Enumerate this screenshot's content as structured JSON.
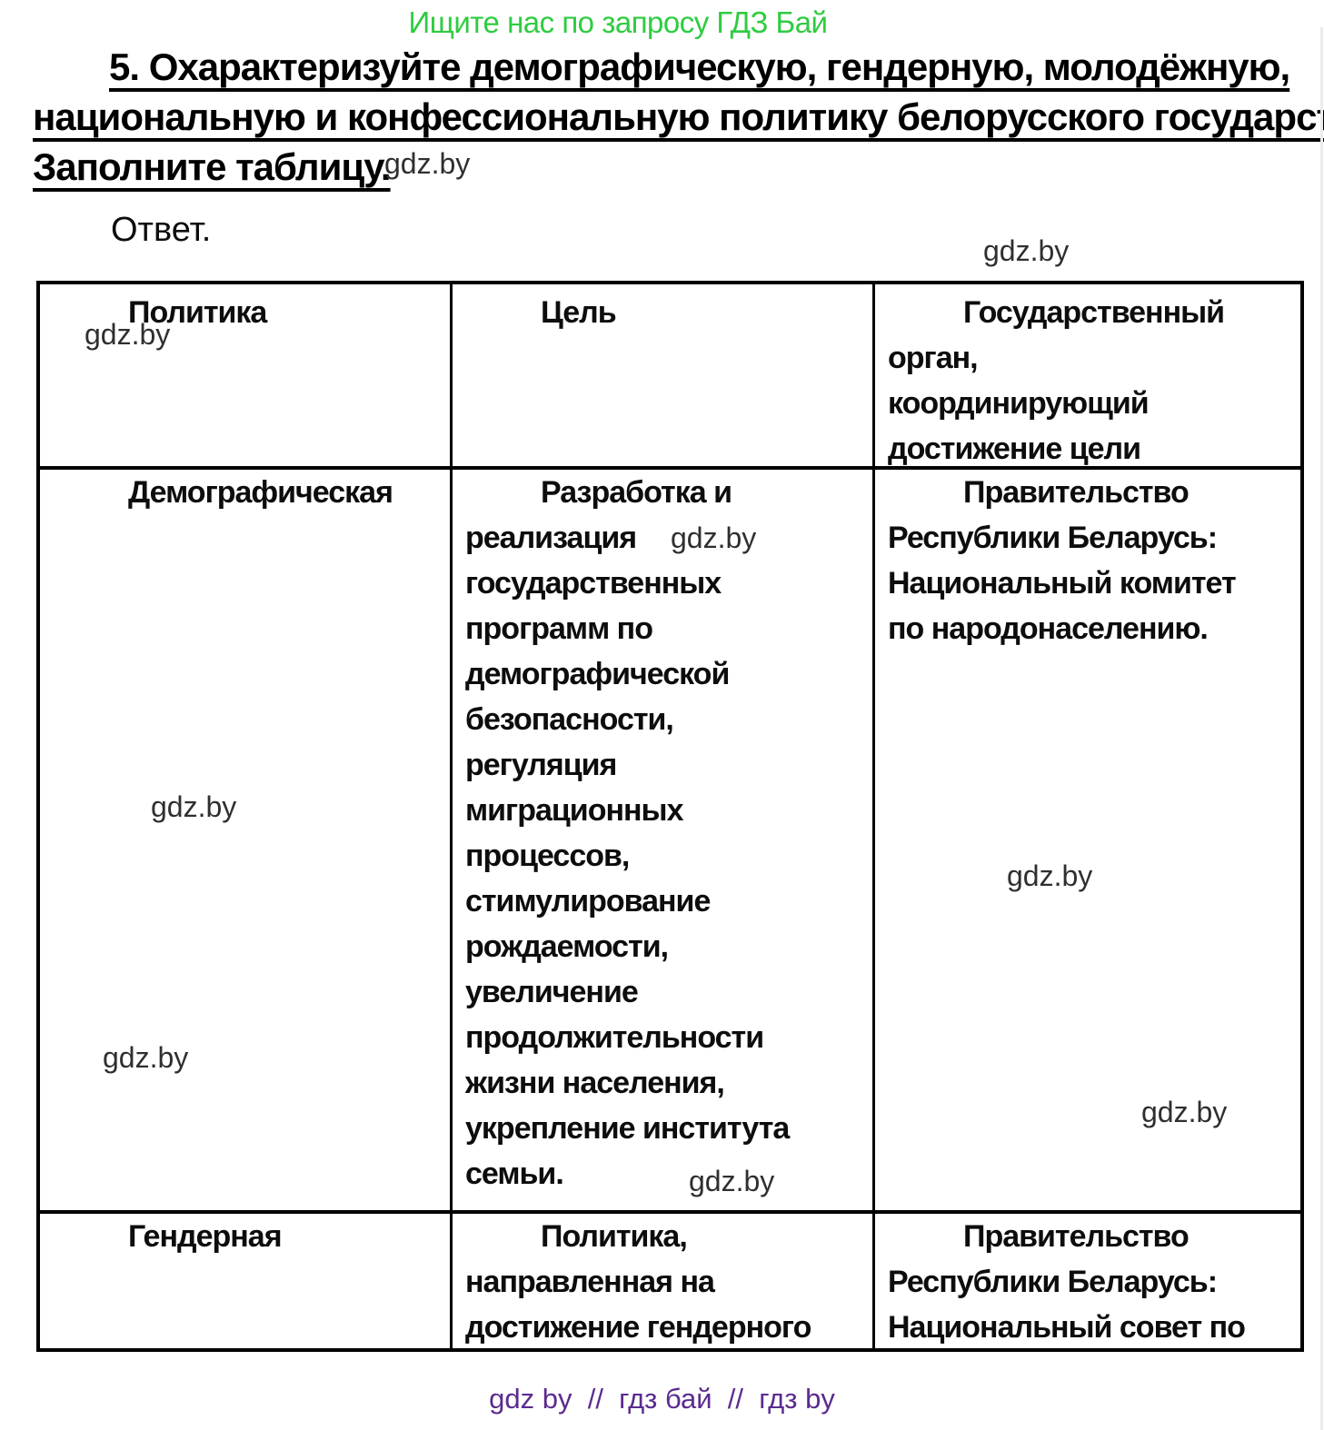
{
  "page": {
    "promo": "Ищите нас по запросу ГДЗ Бай",
    "watermark_text": "gdz.by",
    "footer_credits": "gdz by  //  гдз бай  //  гдз by",
    "colors": {
      "promo_green": "#2ecc40",
      "footer_purple": "#5b2b8f",
      "table_border": "#000000",
      "body_text": "#0d0d0d"
    }
  },
  "task": {
    "heading_lines": [
      "5. Охарактеризуйте демографическую, гендерную, молодёжную,",
      "национальную и конфессиональную политику белорусского государства.",
      "Заполните таблицу."
    ],
    "answer_label": "Ответ."
  },
  "table": {
    "header": {
      "policy": [
        "Политика"
      ],
      "goal": [
        "Цель"
      ],
      "organ": [
        "Государственный",
        "орган,",
        "координирующий",
        "достижение цели"
      ]
    },
    "rows": [
      {
        "policy": [
          "Демографическая"
        ],
        "goal": [
          "Разработка и",
          "реализация",
          "государственных",
          "программ по",
          "демографической",
          "безопасности,",
          "регуляция",
          "миграционных",
          "процессов,",
          "стимулирование",
          "рождаемости,",
          "увеличение",
          "продолжительности",
          "жизни населения,",
          "укрепление института",
          "семьи."
        ],
        "organ": [
          "Правительство",
          "Республики Беларусь:",
          "Национальный комитет",
          "по народонаселению."
        ]
      },
      {
        "policy": [
          "Гендерная"
        ],
        "goal": [
          "Политика,",
          "направленная на",
          "достижение гендерного"
        ],
        "organ": [
          "Правительство",
          "Республики Беларусь:",
          "Национальный совет по"
        ]
      }
    ]
  }
}
